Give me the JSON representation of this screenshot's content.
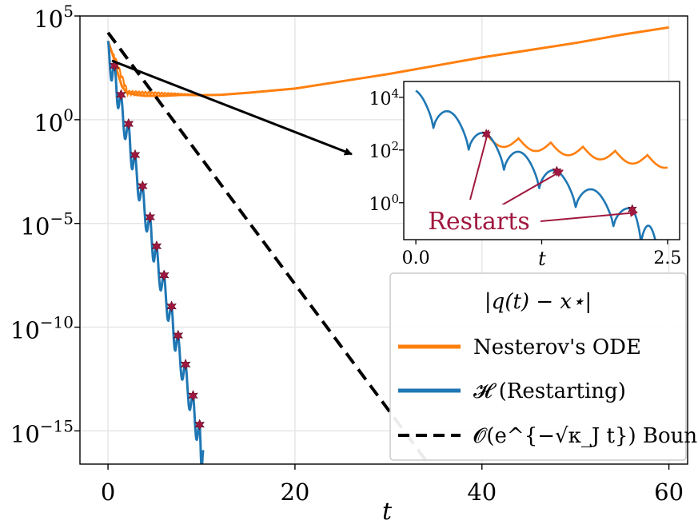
{
  "chart_data": [
    {
      "type": "line",
      "xlabel": "t",
      "xlim": [
        -3,
        62
      ],
      "ylim_log10": [
        -16.6,
        5
      ],
      "yscale": "log",
      "grid": true,
      "xticks": [
        {
          "value": 0,
          "label": "0"
        },
        {
          "value": 20,
          "label": "20"
        },
        {
          "value": 40,
          "label": "40"
        },
        {
          "value": 60,
          "label": "60"
        }
      ],
      "yticks": [
        {
          "exp": 5,
          "base": "10",
          "power": "5"
        },
        {
          "exp": 0,
          "base": "10",
          "power": "0"
        },
        {
          "exp": -5,
          "base": "10",
          "power": "−5"
        },
        {
          "exp": -10,
          "base": "10",
          "power": "−10"
        },
        {
          "exp": -15,
          "base": "10",
          "power": "−15"
        }
      ],
      "series": [
        {
          "name": "Nesterov's ODE",
          "color": "#ff7f0e",
          "points_log10": [
            [
              0,
              3.8
            ],
            [
              0.6,
              3.0
            ],
            [
              1.0,
              2.3
            ],
            [
              1.5,
              1.6
            ],
            [
              2,
              1.3
            ],
            [
              3,
              1.2
            ],
            [
              4,
              1.15
            ],
            [
              6,
              1.15
            ],
            [
              8,
              1.2
            ],
            [
              10,
              1.18
            ],
            [
              12,
              1.2
            ],
            [
              15,
              1.3
            ],
            [
              20,
              1.5
            ],
            [
              25,
              1.85
            ],
            [
              30,
              2.2
            ],
            [
              35,
              2.6
            ],
            [
              40,
              3.0
            ],
            [
              45,
              3.35
            ],
            [
              50,
              3.7
            ],
            [
              55,
              4.1
            ],
            [
              60,
              4.45
            ]
          ]
        },
        {
          "name": "𝓗 (Restarting)",
          "color": "#1f77b4",
          "segment_starts": [
            0,
            0.7,
            1.4,
            2.2,
            2.9,
            3.7,
            4.5,
            5.2,
            6.0,
            6.8,
            7.5,
            8.3,
            9.1,
            9.8,
            10.2
          ],
          "segment_peak_log10": [
            3.8,
            2.8,
            1.2,
            -0.2,
            -1.7,
            -3.2,
            -4.7,
            -6.1,
            -7.5,
            -9.0,
            -10.4,
            -11.8,
            -13.3,
            -14.7,
            -16.0
          ],
          "restart_points_log10": [
            [
              0.7,
              2.6
            ],
            [
              1.4,
              1.2
            ],
            [
              2.2,
              -0.2
            ],
            [
              2.9,
              -1.7
            ],
            [
              3.7,
              -3.2
            ],
            [
              4.5,
              -4.7
            ],
            [
              5.2,
              -6.1
            ],
            [
              6.0,
              -7.5
            ],
            [
              6.8,
              -9.0
            ],
            [
              7.5,
              -10.4
            ],
            [
              8.3,
              -11.8
            ],
            [
              9.1,
              -13.3
            ],
            [
              9.8,
              -14.7
            ]
          ]
        },
        {
          "name": "𝓞(e^{−√κ_J t}) Bound",
          "color": "#000000",
          "style": "dashed",
          "points_log10": [
            [
              0,
              4.2
            ],
            [
              34.3,
              -16.6
            ]
          ]
        }
      ],
      "legend": {
        "placement": "lower-right",
        "title": "|q(t) − x⋆|",
        "entries": [
          "Nesterov's ODE",
          "𝓗 (Restarting)",
          "𝓞(e^{−√κ_J t}) Bound"
        ]
      }
    },
    {
      "type": "line",
      "role": "inset",
      "xlabel": "t",
      "xlim": [
        -0.12,
        2.62
      ],
      "ylim_log10": [
        -1.4,
        4.6
      ],
      "yscale": "log",
      "xticks": [
        {
          "value": 0,
          "label": "0.0"
        },
        {
          "value": 2.5,
          "label": "2.5"
        }
      ],
      "yticks": [
        {
          "exp": 4,
          "base": "10",
          "power": "4"
        },
        {
          "exp": 2,
          "base": "10",
          "power": "2"
        },
        {
          "exp": 0,
          "base": "10",
          "power": "0"
        }
      ],
      "series": [
        {
          "name": "Nesterov's ODE",
          "color": "#ff7f0e",
          "decay_from": [
            0.7,
            2.6
          ],
          "decay_rate_per_unit": 0.9,
          "oscillation_period": 0.32,
          "oscillation_depth": 0.4
        },
        {
          "name": "𝓗 (Restarting)",
          "color": "#1f77b4",
          "segment_starts": [
            0,
            0.7,
            1.4,
            2.15
          ],
          "segment_peak_log10": [
            4.25,
            2.6,
            1.2,
            -0.25
          ],
          "restart_points_log10": [
            [
              0.7,
              2.6
            ],
            [
              1.4,
              1.2
            ],
            [
              2.15,
              -0.25
            ]
          ]
        }
      ],
      "annotation": {
        "text": "Restarts",
        "color": "#a0183f"
      }
    }
  ]
}
